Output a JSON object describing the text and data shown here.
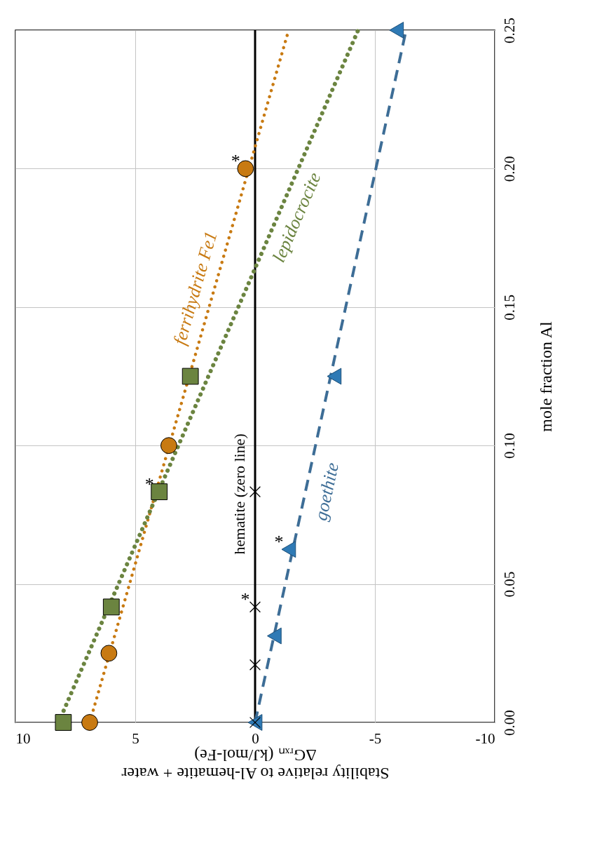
{
  "chart_data": {
    "type": "scatter",
    "xlabel": "Stability relative to Al-hematite + water\nΔGᵣₓₙ (kJ/mol-Fe)",
    "ylabel": "mole fraction Al",
    "xlim": [
      10,
      -10
    ],
    "xticks": [
      10,
      5,
      0,
      -5,
      -10
    ],
    "ylim": [
      0,
      0.25
    ],
    "yticks": [
      {
        "value": 0,
        "label": "0.00"
      },
      {
        "value": 0.05,
        "label": "0.05"
      },
      {
        "value": 0.1,
        "label": "0.10"
      },
      {
        "value": 0.15,
        "label": "0.15"
      },
      {
        "value": 0.2,
        "label": "0.20"
      },
      {
        "value": 0.25,
        "label": "0.25"
      }
    ],
    "grid": true,
    "legend": false,
    "series": [
      {
        "color": "#c87a12",
        "marker": "circle",
        "x": [
          6.9,
          6.1,
          3.6,
          0.4
        ],
        "values": [
          0,
          0.025,
          0.1,
          0.2
        ]
      },
      {
        "color": "#6b8440",
        "marker": "square",
        "x": [
          8.0,
          6.0,
          4.0,
          2.7
        ],
        "values": [
          0,
          0.0417,
          0.0833,
          0.125
        ]
      },
      {
        "color": "#2f7ab5",
        "marker": "triangle",
        "x": [
          0,
          -0.8,
          -1.4,
          -3.3,
          -5.9
        ],
        "values": [
          0,
          0.03125,
          0.0625,
          0.125,
          0.25
        ]
      },
      {
        "color": "#000000",
        "marker": "cross",
        "x": [
          0,
          0,
          0,
          0
        ],
        "values": [
          0,
          0.0208,
          0.0417,
          0.0833
        ]
      },
      {
        "type": "line",
        "name": "ferrihydrite Fe1",
        "color": "#c87a12",
        "line_style": "dotted",
        "x": [
          6.9,
          -1.4
        ],
        "values": [
          0,
          0.25
        ]
      },
      {
        "type": "line",
        "name": "lepidocrocite",
        "color": "#6b8440",
        "line_style": "dotted",
        "x": [
          8.2,
          -4.3
        ],
        "values": [
          0,
          0.25
        ]
      },
      {
        "type": "line",
        "name": "goethite",
        "color": "#3d6d96",
        "line_style": "dashed",
        "x": [
          0,
          -6.3
        ],
        "values": [
          0,
          0.25
        ]
      }
    ],
    "ref_lines": [
      {
        "axis": "x",
        "value": 0,
        "label": "hematite (zero line)",
        "color": "#000000"
      }
    ],
    "annotations": [
      {
        "text": "*",
        "x": 0.4,
        "y": 0.2
      },
      {
        "text": "*",
        "x": 4.0,
        "y": 0.0833
      },
      {
        "text": "*",
        "x": 0,
        "y": 0.0417
      },
      {
        "text": "*",
        "x": -1.4,
        "y": 0.0625
      }
    ]
  }
}
